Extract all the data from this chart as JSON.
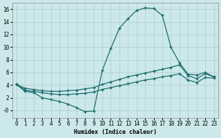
{
  "xlabel": "Humidex (Indice chaleur)",
  "bg_color": "#cce8ea",
  "grid_color": "#aacccc",
  "line_color": "#1a6b6b",
  "xlim": [
    -0.5,
    23.5
  ],
  "ylim": [
    -1.2,
    17.0
  ],
  "xticks": [
    0,
    1,
    2,
    3,
    4,
    5,
    6,
    7,
    8,
    9,
    10,
    11,
    12,
    13,
    14,
    15,
    16,
    17,
    18,
    19,
    20,
    21,
    22,
    23
  ],
  "yticks": [
    0,
    2,
    4,
    6,
    8,
    10,
    12,
    14,
    16
  ],
  "ytick_labels": [
    "-0",
    "2",
    "4",
    "6",
    "8",
    "10",
    "12",
    "14",
    "16"
  ],
  "line1_x": [
    0,
    1,
    2,
    3,
    4,
    5,
    6,
    7,
    8,
    9,
    10,
    11,
    12,
    13,
    14,
    15,
    16,
    17,
    18,
    19,
    20,
    21,
    22,
    23
  ],
  "line1_y": [
    4.1,
    3.0,
    2.8,
    2.0,
    1.7,
    1.4,
    1.0,
    0.4,
    -0.2,
    -0.1,
    6.3,
    9.8,
    13.0,
    14.5,
    15.8,
    16.2,
    16.1,
    15.0,
    10.0,
    7.5,
    5.7,
    5.6,
    6.0,
    5.3
  ],
  "line2_x": [
    0,
    1,
    2,
    3,
    4,
    5,
    6,
    7,
    8,
    9,
    10,
    11,
    12,
    13,
    14,
    15,
    16,
    17,
    18,
    19,
    20,
    21,
    22,
    23
  ],
  "line2_y": [
    4.1,
    3.5,
    3.3,
    3.1,
    3.0,
    3.0,
    3.1,
    3.2,
    3.4,
    3.6,
    4.1,
    4.5,
    4.9,
    5.3,
    5.6,
    5.9,
    6.2,
    6.5,
    6.8,
    7.2,
    5.5,
    5.0,
    5.8,
    5.3
  ],
  "line3_x": [
    0,
    1,
    2,
    3,
    4,
    5,
    6,
    7,
    8,
    9,
    10,
    11,
    12,
    13,
    14,
    15,
    16,
    17,
    18,
    19,
    20,
    21,
    22,
    23
  ],
  "line3_y": [
    4.1,
    3.2,
    3.0,
    2.8,
    2.6,
    2.5,
    2.5,
    2.6,
    2.7,
    2.9,
    3.3,
    3.6,
    3.9,
    4.2,
    4.5,
    4.8,
    5.0,
    5.3,
    5.5,
    5.8,
    4.8,
    4.4,
    5.2,
    5.1
  ],
  "marker": "+",
  "markersize": 3,
  "linewidth": 0.9,
  "tick_fontsize": 5.5,
  "xlabel_fontsize": 6.0
}
